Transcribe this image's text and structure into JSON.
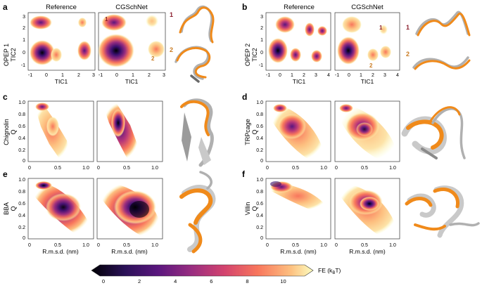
{
  "panels": {
    "a": {
      "letter": "a",
      "plot_titles": [
        "Reference",
        "CGSchNet"
      ],
      "ylabel_top": "OPEP 1",
      "ylabel": "TIC2",
      "xlabel": "TIC1",
      "xticks": [
        "-1",
        "0",
        "1",
        "2",
        "3"
      ],
      "yticks": [
        "3",
        "2",
        "1",
        "0",
        "-1"
      ],
      "state_labels": [
        "1",
        "2"
      ],
      "structure_labels": [
        "1",
        "2"
      ]
    },
    "b": {
      "letter": "b",
      "plot_titles": [
        "Reference",
        "CGSchNet"
      ],
      "ylabel_top": "OPEP 2",
      "ylabel": "TIC2",
      "xlabel": "TIC1",
      "xticks": [
        "-1",
        "0",
        "1",
        "2",
        "3",
        "4"
      ],
      "yticks": [
        "3",
        "2",
        "1",
        "0",
        "-1"
      ],
      "state_labels": [
        "1",
        "2"
      ],
      "structure_labels": [
        "1",
        "2"
      ]
    },
    "c": {
      "letter": "c",
      "ylabel_top": "Chignolin",
      "ylabel": "Q",
      "xticks": [
        "0",
        "0.5",
        "1.0"
      ],
      "yticks": [
        "1.0",
        "0.8",
        "0.6",
        "0.4",
        "0.2",
        "0"
      ]
    },
    "d": {
      "letter": "d",
      "ylabel_top": "TRPcage",
      "ylabel": "Q",
      "xticks": [
        "0",
        "0.5",
        "1.0"
      ],
      "yticks": [
        "1.0",
        "0.8",
        "0.6",
        "0.4",
        "0.2",
        "0"
      ]
    },
    "e": {
      "letter": "e",
      "ylabel_top": "BBA",
      "ylabel": "Q",
      "xlabel": "R.m.s.d. (nm)",
      "xticks": [
        "0",
        "0.5",
        "1.0"
      ],
      "yticks": [
        "1.0",
        "0.8",
        "0.6",
        "0.4",
        "0.2",
        "0"
      ]
    },
    "f": {
      "letter": "f",
      "ylabel_top": "Villin",
      "ylabel": "Q",
      "xlabel": "R.m.s.d. (nm)",
      "xticks": [
        "0",
        "0.5",
        "1.0"
      ],
      "yticks": [
        "1.0",
        "0.8",
        "0.6",
        "0.4",
        "0.2",
        "0"
      ]
    }
  },
  "colorbar": {
    "label": "FE (k_BT)",
    "ticks": [
      "0",
      "2",
      "4",
      "6",
      "8",
      "10"
    ],
    "range": [
      0,
      11
    ],
    "colors": [
      "#000004",
      "#1d1147",
      "#3b0f70",
      "#5a167e",
      "#7a2382",
      "#982d80",
      "#b73779",
      "#d3436e",
      "#eb5760",
      "#f8765c",
      "#fd9b6b",
      "#fec287",
      "#fde3a8",
      "#fcfdbf"
    ]
  },
  "palette": {
    "reference_structure": "#b0b0b0",
    "model_structure": "#f08a1a",
    "label_red": "#8b1e2d",
    "label_orange": "#c97a20"
  }
}
